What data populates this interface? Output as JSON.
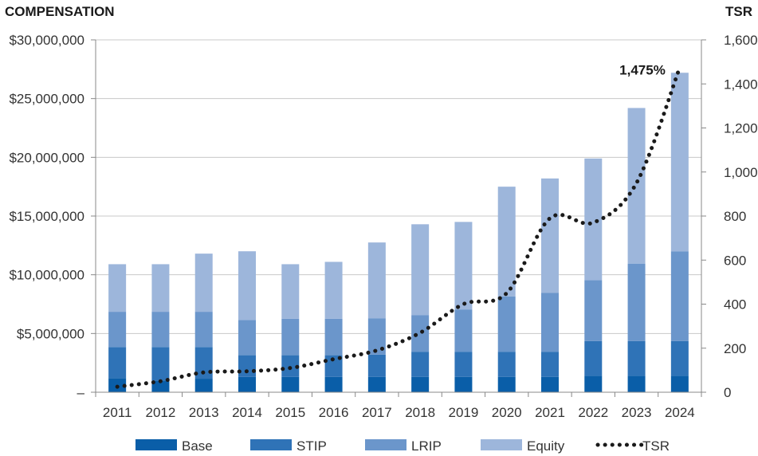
{
  "chart_data": {
    "type": "bar",
    "stacked": true,
    "left_axis_title": "COMPENSATION",
    "right_axis_title": "TSR",
    "categories": [
      "2011",
      "2012",
      "2013",
      "2014",
      "2015",
      "2016",
      "2017",
      "2018",
      "2019",
      "2020",
      "2021",
      "2022",
      "2023",
      "2024"
    ],
    "series": [
      {
        "name": "Base",
        "color": "#0a5ea8",
        "axis": "left",
        "values": [
          1200000,
          1000000,
          1150000,
          1300000,
          1300000,
          1300000,
          1300000,
          1300000,
          1300000,
          1300000,
          1300000,
          1400000,
          1400000,
          1400000
        ]
      },
      {
        "name": "STIP",
        "color": "#2f73b7",
        "axis": "left",
        "values": [
          2650000,
          2850000,
          2700000,
          1850000,
          1850000,
          1850000,
          1900000,
          2150000,
          2150000,
          2150000,
          2150000,
          2950000,
          2950000,
          2950000
        ]
      },
      {
        "name": "LRIP",
        "color": "#6b96cb",
        "axis": "left",
        "values": [
          3000000,
          3000000,
          3000000,
          3000000,
          3100000,
          3100000,
          3100000,
          3100000,
          3600000,
          4700000,
          5000000,
          5200000,
          6600000,
          7650000
        ]
      },
      {
        "name": "Equity",
        "color": "#9db6db",
        "axis": "left",
        "values": [
          4050000,
          4050000,
          4950000,
          5850000,
          4650000,
          4850000,
          6450000,
          7750000,
          7450000,
          9350000,
          9750000,
          10350000,
          13250000,
          15200000
        ]
      },
      {
        "name": "TSR",
        "color": "#1a1a1a",
        "axis": "right",
        "style": "dotted-line",
        "values": [
          25,
          50,
          90,
          95,
          110,
          150,
          190,
          270,
          400,
          450,
          790,
          770,
          950,
          1475
        ]
      }
    ],
    "left_axis": {
      "min": 0,
      "max": 30000000,
      "ticks": [
        0,
        5000000,
        10000000,
        15000000,
        20000000,
        25000000,
        30000000
      ],
      "tick_labels": [
        "–",
        "$5,000,000",
        "$10,000,000",
        "$15,000,000",
        "$20,000,000",
        "$25,000,000",
        "$30,000,000"
      ]
    },
    "right_axis": {
      "min": 0,
      "max": 1600,
      "ticks": [
        0,
        200,
        400,
        600,
        800,
        1000,
        1200,
        1400,
        1600
      ],
      "tick_labels": [
        "0",
        "200",
        "400",
        "600",
        "800",
        "1,000",
        "1,200",
        "1,400",
        "1,600"
      ]
    },
    "grid": true,
    "legend_position": "bottom",
    "annotations": [
      {
        "text": "1,475%",
        "category": "2024",
        "value": 1475,
        "axis": "right"
      }
    ]
  }
}
